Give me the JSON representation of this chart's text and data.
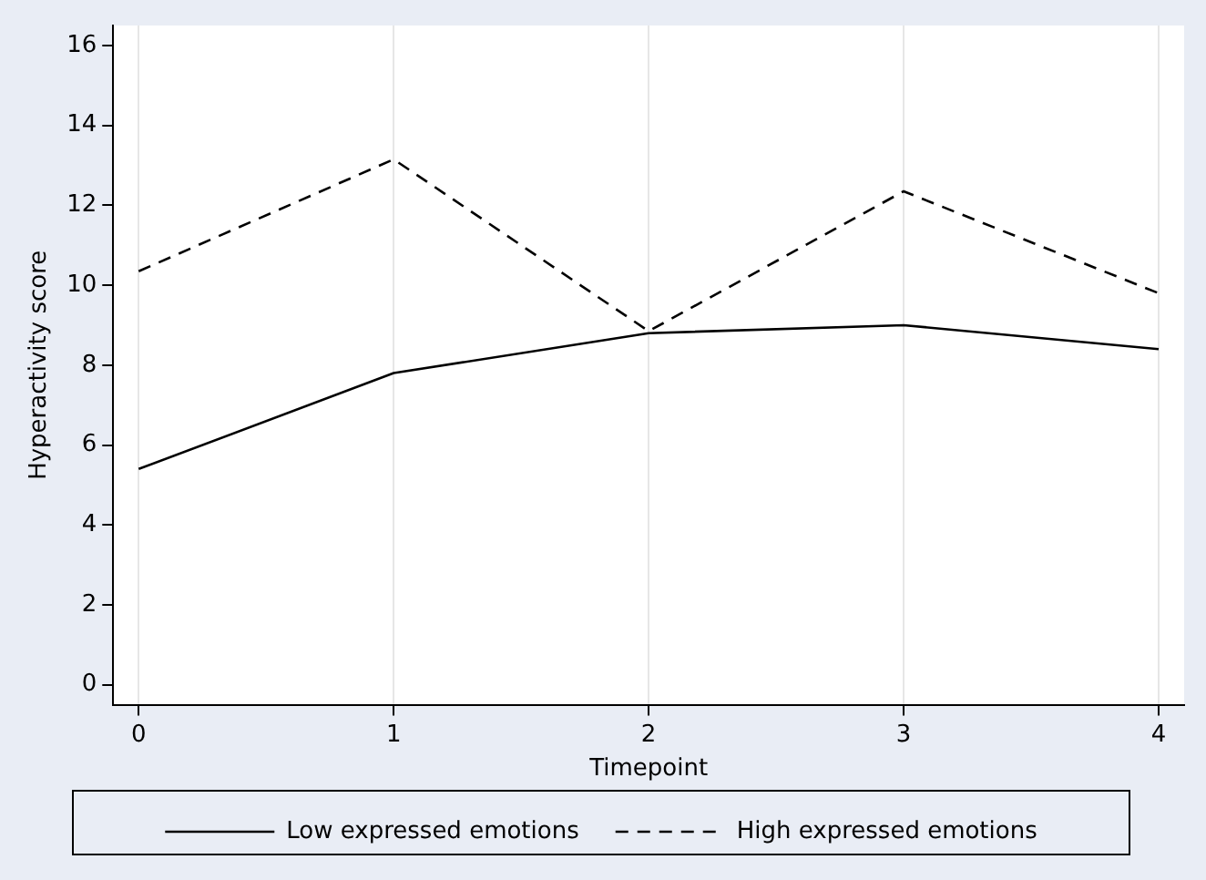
{
  "chart_data": {
    "type": "line",
    "xlabel": "Timepoint",
    "ylabel": "Hyperactivity score",
    "x": [
      0,
      1,
      2,
      3,
      4
    ],
    "series": [
      {
        "name": "Low expressed emotions",
        "color": "#000000",
        "line_style": "solid",
        "values": [
          5.4,
          7.8,
          8.8,
          9.0,
          8.4
        ]
      },
      {
        "name": "High expressed emotions",
        "color": "#000000",
        "line_style": "dashed",
        "values": [
          10.35,
          13.15,
          8.85,
          12.35,
          9.8
        ]
      }
    ],
    "xlim": [
      -0.1,
      4.1
    ],
    "xticks": [
      0,
      1,
      2,
      3,
      4
    ],
    "ylim": [
      -0.5,
      16.5
    ],
    "yticks": [
      0,
      2,
      4,
      6,
      8,
      10,
      12,
      14,
      16
    ],
    "grid": "x",
    "legend": "bottom",
    "marker": "none"
  }
}
